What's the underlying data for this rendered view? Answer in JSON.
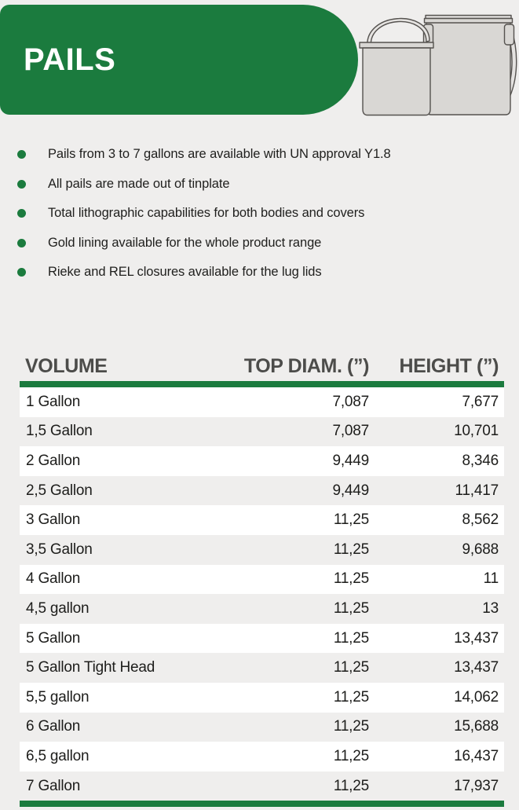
{
  "colors": {
    "green": "#1b7b3e",
    "page_bg": "#efeeed",
    "header_text": "#4c4c4a",
    "body_text": "#1d1d1b",
    "row_white": "#ffffff",
    "pail_fill": "#d9d7d4",
    "pail_stroke": "#55524f"
  },
  "header": {
    "title": "PAILS",
    "illustration": "two tinplate pails with handles"
  },
  "features": [
    "Pails from 3 to 7 gallons are available with UN approval Y1.8",
    "All pails are made out of tinplate",
    "Total lithographic capabilities for both bodies and covers",
    "Gold lining available for the whole product range",
    "Rieke and REL closures available for the lug lids"
  ],
  "table": {
    "columns": [
      "VOLUME",
      "TOP DIAM. (”)",
      "HEIGHT (”)"
    ],
    "rows": [
      [
        "1 Gallon",
        "7,087",
        "7,677"
      ],
      [
        "1,5 Gallon",
        "7,087",
        "10,701"
      ],
      [
        "2 Gallon",
        "9,449",
        "8,346"
      ],
      [
        "2,5 Gallon",
        "9,449",
        "11,417"
      ],
      [
        "3 Gallon",
        "11,25",
        "8,562"
      ],
      [
        "3,5 Gallon",
        "11,25",
        "9,688"
      ],
      [
        "4 Gallon",
        "11,25",
        "11"
      ],
      [
        "4,5 gallon",
        "11,25",
        "13"
      ],
      [
        "5 Gallon",
        "11,25",
        "13,437"
      ],
      [
        "5 Gallon Tight Head",
        "11,25",
        "13,437"
      ],
      [
        "5,5 gallon",
        "11,25",
        "14,062"
      ],
      [
        "6 Gallon",
        "11,25",
        "15,688"
      ],
      [
        "6,5 gallon",
        "11,25",
        "16,437"
      ],
      [
        "7 Gallon",
        "11,25",
        "17,937"
      ]
    ]
  }
}
